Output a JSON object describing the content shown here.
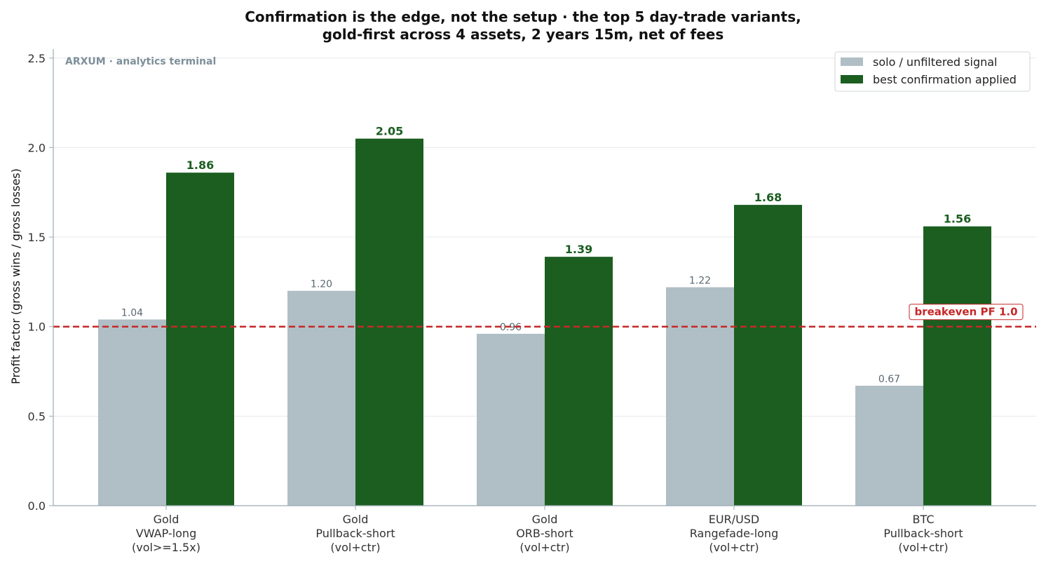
{
  "title": {
    "line1": "Confirmation is the edge, not the setup · the top 5 day-trade variants,",
    "line2": "gold-first across 4 assets, 2 years 15m, net of fees"
  },
  "watermark": "ARXUM · analytics terminal",
  "colors": {
    "solo": "#b0bec5",
    "confirmation": "#1b5e20",
    "breakeven": "#c62828",
    "grid": "#e6e9eb",
    "axis": "#9aacb4"
  },
  "chart_data": {
    "type": "bar",
    "title": "Confirmation is the edge, not the setup · the top 5 day-trade variants, gold-first across 4 assets, 2 years 15m, net of fees",
    "ylabel": "Profit factor (gross wins / gross losses)",
    "xlabel": "",
    "ylim": [
      0,
      2.55
    ],
    "yticks": [
      "0.0",
      "0.5",
      "1.0",
      "1.5",
      "2.0",
      "2.5"
    ],
    "grid": "horizontal",
    "legend_position": "top-right",
    "categories": [
      [
        "Gold",
        "VWAP-long",
        "(vol>=1.5x)"
      ],
      [
        "Gold",
        "Pullback-short",
        "(vol+ctr)"
      ],
      [
        "Gold",
        "ORB-short",
        "(vol+ctr)"
      ],
      [
        "EUR/USD",
        "Rangefade-long",
        "(vol+ctr)"
      ],
      [
        "BTC",
        "Pullback-short",
        "(vol+ctr)"
      ]
    ],
    "series": [
      {
        "name": "solo / unfiltered signal",
        "values": [
          1.04,
          1.2,
          0.96,
          1.22,
          0.67
        ],
        "labels": [
          "1.04",
          "1.20",
          "0.96",
          "1.22",
          "0.67"
        ]
      },
      {
        "name": "best confirmation applied",
        "values": [
          1.86,
          2.05,
          1.39,
          1.68,
          1.56
        ],
        "labels": [
          "1.86",
          "2.05",
          "1.39",
          "1.68",
          "1.56"
        ]
      }
    ],
    "reference_line": {
      "value": 1.0,
      "label": "breakeven PF 1.0"
    }
  }
}
